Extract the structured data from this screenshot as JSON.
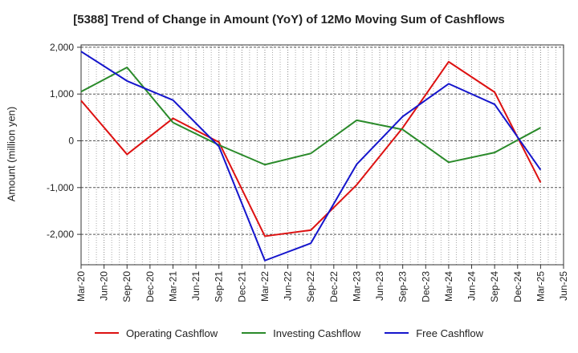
{
  "chart_data": {
    "type": "line",
    "title": "[5388]  Trend of Change in Amount (YoY) of 12Mo Moving Sum of Cashflows",
    "xlabel": "",
    "ylabel": "Amount (million yen)",
    "ylim": [
      -2650,
      2050
    ],
    "yticks": [
      2000,
      1000,
      0,
      -1000,
      -2000
    ],
    "ytick_labels": [
      "2,000",
      "1,000",
      "0",
      "-1,000",
      "-2,000"
    ],
    "xticks": [
      "Mar-20",
      "Jun-20",
      "Sep-20",
      "Dec-20",
      "Mar-21",
      "Jun-21",
      "Sep-21",
      "Dec-21",
      "Mar-22",
      "Jun-22",
      "Sep-22",
      "Dec-22",
      "Mar-23",
      "Jun-23",
      "Sep-23",
      "Dec-23",
      "Mar-24",
      "Jun-24",
      "Sep-24",
      "Dec-24",
      "Mar-25",
      "Jun-25"
    ],
    "categories": [
      "Mar-20",
      "Sep-20",
      "Mar-21",
      "Sep-21",
      "Mar-22",
      "Sep-22",
      "Mar-23",
      "Sep-23",
      "Mar-24",
      "Sep-24",
      "Mar-25"
    ],
    "grid": true,
    "legend_position": "bottom",
    "series": [
      {
        "name": "Operating Cashflow",
        "color": "#dd1111",
        "values": [
          860,
          -290,
          480,
          -30,
          -2040,
          -1910,
          -940,
          280,
          1690,
          1040,
          -890
        ]
      },
      {
        "name": "Investing Cashflow",
        "color": "#2a8a2a",
        "values": [
          1050,
          1570,
          390,
          -90,
          -510,
          -270,
          440,
          240,
          -460,
          -250,
          280
        ]
      },
      {
        "name": "Free Cashflow",
        "color": "#1515cc",
        "values": [
          1910,
          1280,
          870,
          -120,
          -2560,
          -2190,
          -500,
          520,
          1220,
          780,
          -620
        ]
      }
    ]
  }
}
